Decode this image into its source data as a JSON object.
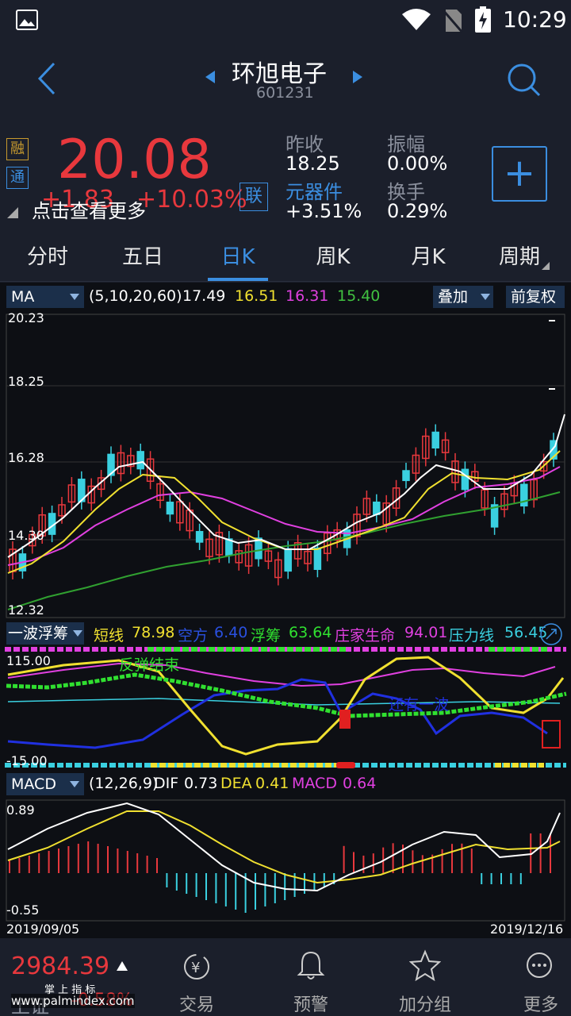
{
  "status": {
    "time": "10:29"
  },
  "header": {
    "title": "环旭电子",
    "code": "601231"
  },
  "quote": {
    "price": "20.08",
    "change": "+1.83",
    "change_pct": "+10.03%",
    "badge_rong": "融",
    "badge_tong": "通",
    "badge_lian": "联",
    "tap_more": "点击查看更多",
    "prev_close_label": "昨收",
    "prev_close": "18.25",
    "amplitude_label": "振幅",
    "amplitude": "0.00%",
    "sector_label": "元器件",
    "sector_change": "+3.51%",
    "turnover_label": "换手",
    "turnover": "0.29%",
    "add_label": "+",
    "up_color": "#e8383d",
    "accent_color": "#3b8ee0"
  },
  "tabs": [
    {
      "label": "分时"
    },
    {
      "label": "五日"
    },
    {
      "label": "日K"
    },
    {
      "label": "周K"
    },
    {
      "label": "月K"
    },
    {
      "label": "周期"
    }
  ],
  "ma": {
    "selector": "MA",
    "params": "(5,10,20,60)",
    "v5": "17.49",
    "v10": "16.51",
    "v20": "16.31",
    "v60": "15.40",
    "overlay": "叠加",
    "adjust": "前复权",
    "y_labels": [
      "20.23",
      "18.25",
      "16.28",
      "14.30",
      "12.32"
    ]
  },
  "indicator": {
    "selector": "一波浮筹",
    "short_label": "短线",
    "short_value": "78.98",
    "empty_label": "空方",
    "empty_value": "6.40",
    "float_label": "浮筹",
    "float_value": "63.64",
    "life_label": "庄家生命",
    "life_value": "94.01",
    "pressure_label": "压力线",
    "pressure_value": "56.45",
    "top_value": "115.00",
    "bottom_value": "-15.00",
    "note1": "反弹结束",
    "note2": "还有一波"
  },
  "macd": {
    "selector": "MACD",
    "params": "(12,26,9)",
    "dif_label": "DIF",
    "dif": "0.73",
    "dea_label": "DEA",
    "dea": "0.41",
    "macd_label": "MACD",
    "macd": "0.64",
    "top": "0.89",
    "bottom": "-0.55",
    "date_start": "2019/09/05",
    "date_end": "2019/12/16"
  },
  "bottom": {
    "index_name": "上证",
    "index_value": "2984.39",
    "index_change": "-0.58%",
    "watermark": "掌 上 指 标",
    "site": "www.palmindex.com",
    "nav": [
      {
        "label": "交易",
        "icon": "yuan-exchange-icon"
      },
      {
        "label": "预警",
        "icon": "bell-icon"
      },
      {
        "label": "加分组",
        "icon": "star-icon"
      },
      {
        "label": "更多",
        "icon": "more-icon"
      }
    ]
  }
}
